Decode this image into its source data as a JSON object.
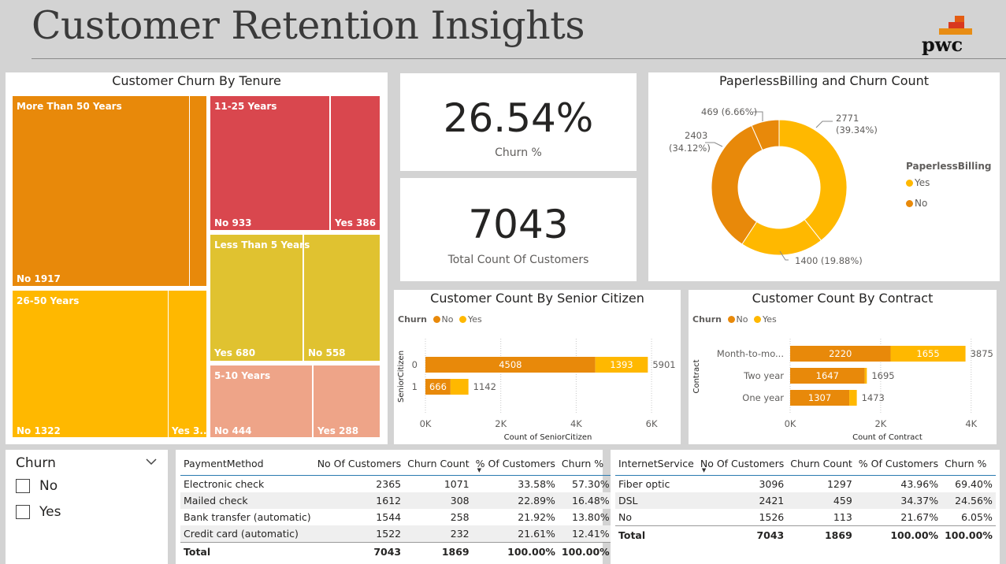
{
  "page": {
    "title": "Customer Retention Insights",
    "logo_text": "pwc"
  },
  "colors": {
    "orange_dark": "#E8890A",
    "orange": "#F0A000",
    "yellow": "#FFB800",
    "red": "#D9474E",
    "mustard": "#E0C230",
    "salmon": "#EEA488",
    "background": "#D3D3D3"
  },
  "tenure_treemap": {
    "title": "Customer Churn By Tenure",
    "groups": [
      {
        "label": "More Than 50 Years",
        "no_label": "No 1917",
        "yes_label": "",
        "no": 1917,
        "yes": 121
      },
      {
        "label": "26-50 Years",
        "no_label": "No 1322",
        "yes_label": "Yes 3...",
        "no": 1322,
        "yes": 300
      },
      {
        "label": "11-25 Years",
        "no_label": "No 933",
        "yes_label": "Yes 386",
        "no": 933,
        "yes": 386
      },
      {
        "label": "Less Than 5 Years",
        "no_label": "No 558",
        "yes_label": "Yes 680",
        "no": 558,
        "yes": 680
      },
      {
        "label": "5-10 Years",
        "no_label": "No 444",
        "yes_label": "Yes 288",
        "no": 444,
        "yes": 288
      }
    ]
  },
  "kpis": {
    "churn_pct": {
      "value": "26.54%",
      "label": "Churn %"
    },
    "total_customers": {
      "value": "7043",
      "label": "Total Count Of Customers"
    }
  },
  "donut": {
    "title": "PaperlessBilling and Churn Count",
    "legend_title": "PaperlessBilling",
    "legend": [
      "Yes",
      "No"
    ],
    "labels": {
      "no_yes": "469 (6.66%)",
      "yes_no_1": "2771",
      "yes_no_2": "(39.34%)",
      "no_no_1": "2403",
      "no_no_2": "(34.12%)",
      "yes_yes": "1400 (19.88%)"
    }
  },
  "senior_chart": {
    "title": "Customer Count By Senior Citizen",
    "legend_title": "Churn",
    "legend": [
      "No",
      "Yes"
    ],
    "ylabel": "SeniorCitizen",
    "xlabel": "Count of SeniorCitizen",
    "xticks": [
      "0K",
      "2K",
      "4K",
      "6K"
    ],
    "categories": [
      "0",
      "1"
    ],
    "values_no": [
      "4508",
      "666"
    ],
    "values_yes": [
      "1393",
      ""
    ],
    "totals": [
      "5901",
      "1142"
    ]
  },
  "contract_chart": {
    "title": "Customer Count By Contract",
    "legend_title": "Churn",
    "legend": [
      "No",
      "Yes"
    ],
    "ylabel": "Contract",
    "xlabel": "Count of Contract",
    "xticks": [
      "0K",
      "2K",
      "4K"
    ],
    "categories": [
      "Month-to-mo...",
      "Two year",
      "One year"
    ],
    "values_no": [
      "2220",
      "1647",
      "1307"
    ],
    "values_yes": [
      "1655",
      "",
      ""
    ],
    "totals": [
      "3875",
      "1695",
      "1473"
    ]
  },
  "chart_data": [
    {
      "type": "bar",
      "title": "Customer Count By Senior Citizen",
      "orientation": "horizontal-stacked",
      "categories": [
        "0",
        "1"
      ],
      "series": [
        {
          "name": "No",
          "values": [
            4508,
            666
          ]
        },
        {
          "name": "Yes",
          "values": [
            1393,
            476
          ]
        }
      ],
      "xlabel": "Count of SeniorCitizen",
      "ylabel": "SeniorCitizen",
      "xlim": [
        0,
        6500
      ]
    },
    {
      "type": "bar",
      "title": "Customer Count By Contract",
      "orientation": "horizontal-stacked",
      "categories": [
        "Month-to-mo...",
        "Two year",
        "One year"
      ],
      "series": [
        {
          "name": "No",
          "values": [
            2220,
            1647,
            1307
          ]
        },
        {
          "name": "Yes",
          "values": [
            1655,
            48,
            166
          ]
        }
      ],
      "xlabel": "Count of Contract",
      "ylabel": "Contract",
      "xlim": [
        0,
        4300
      ]
    },
    {
      "type": "pie",
      "title": "PaperlessBilling and Churn Count",
      "slices": [
        {
          "name": "Yes / No",
          "value": 2771
        },
        {
          "name": "Yes / Yes",
          "value": 1400
        },
        {
          "name": "No / No",
          "value": 2403
        },
        {
          "name": "No / Yes",
          "value": 469
        }
      ]
    }
  ],
  "slicer": {
    "title": "Churn",
    "options": [
      "No",
      "Yes"
    ]
  },
  "payment_table": {
    "headers": [
      "PaymentMethod",
      "No Of Customers",
      "Churn Count",
      "% Of Customers",
      "Churn %"
    ],
    "rows": [
      [
        "Electronic check",
        "2365",
        "1071",
        "33.58%",
        "57.30%"
      ],
      [
        "Mailed check",
        "1612",
        "308",
        "22.89%",
        "16.48%"
      ],
      [
        "Bank transfer (automatic)",
        "1544",
        "258",
        "21.92%",
        "13.80%"
      ],
      [
        "Credit card (automatic)",
        "1522",
        "232",
        "21.61%",
        "12.41%"
      ]
    ],
    "total": [
      "Total",
      "7043",
      "1869",
      "100.00%",
      "100.00%"
    ]
  },
  "internet_table": {
    "headers": [
      "InternetService",
      "No Of Customers",
      "Churn Count",
      "% Of Customers",
      "Churn %"
    ],
    "rows": [
      [
        "Fiber optic",
        "3096",
        "1297",
        "43.96%",
        "69.40%"
      ],
      [
        "DSL",
        "2421",
        "459",
        "34.37%",
        "24.56%"
      ],
      [
        "No",
        "1526",
        "113",
        "21.67%",
        "6.05%"
      ]
    ],
    "total": [
      "Total",
      "7043",
      "1869",
      "100.00%",
      "100.00%"
    ]
  }
}
